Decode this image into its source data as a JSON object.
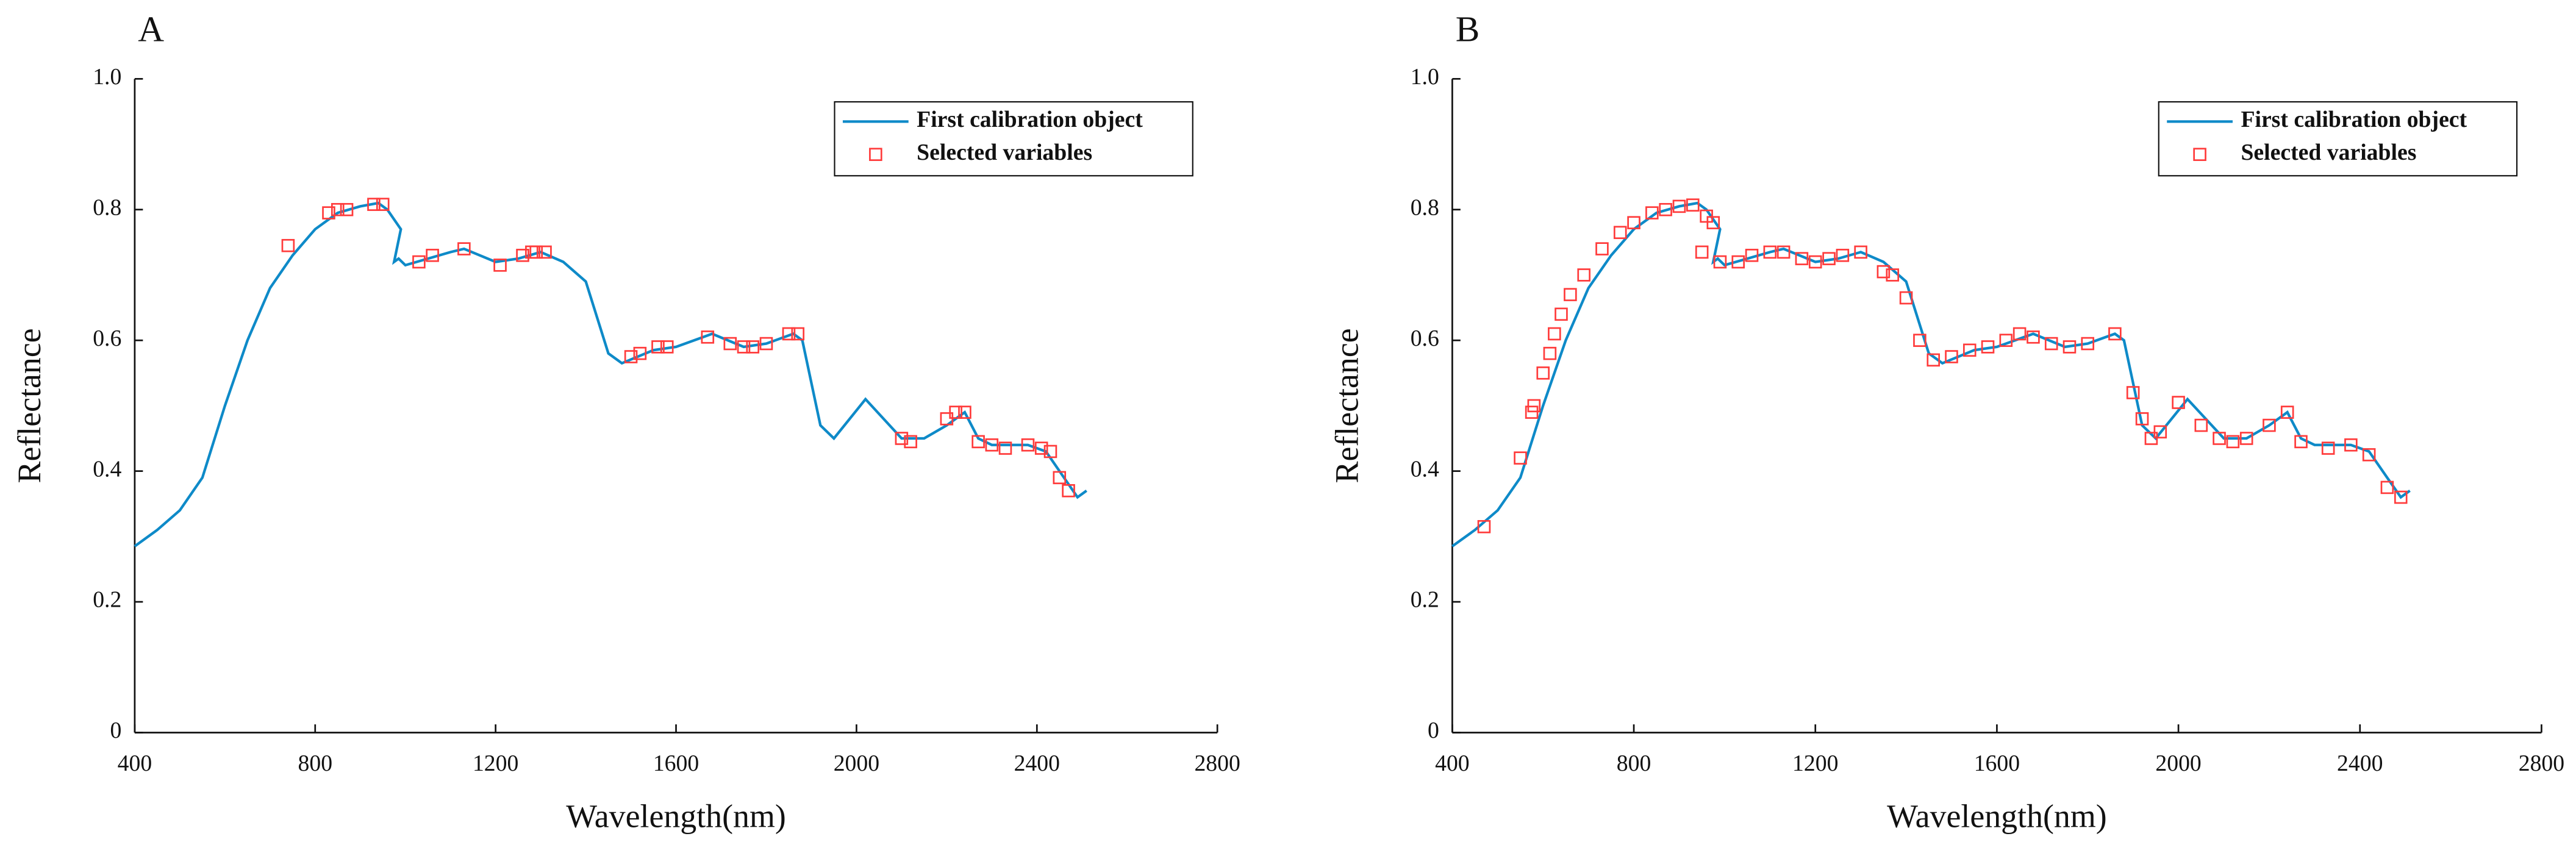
{
  "chart_data": [
    {
      "type": "line",
      "title": "A",
      "xlabel": "Wavelength(nm)",
      "ylabel": "Reflectance",
      "xlim": [
        400,
        2800
      ],
      "xticks": [
        400,
        800,
        1200,
        1600,
        2000,
        2400,
        2800
      ],
      "ylim": [
        0,
        1
      ],
      "yticks": [
        0,
        0.2,
        0.4,
        0.6,
        0.8,
        {
          "value": 1,
          "label": "1.0"
        }
      ],
      "legend": "upper right",
      "series": [
        {
          "name": "First calibration object",
          "type": "line",
          "color": "#0e8ac8",
          "x": [
            400,
            450,
            500,
            550,
            600,
            650,
            700,
            750,
            800,
            850,
            900,
            940,
            960,
            990,
            975,
            985,
            1000,
            1050,
            1100,
            1130,
            1200,
            1250,
            1300,
            1350,
            1400,
            1450,
            1480,
            1550,
            1600,
            1680,
            1750,
            1800,
            1860,
            1880,
            1920,
            1950,
            2020,
            2060,
            2100,
            2150,
            2200,
            2240,
            2270,
            2300,
            2380,
            2420,
            2460,
            2490,
            2510
          ],
          "values": [
            0.285,
            0.31,
            0.34,
            0.39,
            0.5,
            0.6,
            0.68,
            0.73,
            0.77,
            0.795,
            0.805,
            0.81,
            0.8,
            0.77,
            0.72,
            0.725,
            0.715,
            0.725,
            0.735,
            0.74,
            0.72,
            0.725,
            0.735,
            0.72,
            0.69,
            0.58,
            0.565,
            0.585,
            0.59,
            0.61,
            0.59,
            0.595,
            0.61,
            0.6,
            0.47,
            0.45,
            0.51,
            0.48,
            0.45,
            0.45,
            0.47,
            0.49,
            0.45,
            0.44,
            0.44,
            0.43,
            0.39,
            0.36,
            0.37
          ]
        },
        {
          "name": "Selected variables",
          "type": "scatter",
          "color": "#ff3b3b",
          "x": [
            740,
            830,
            850,
            870,
            930,
            950,
            1030,
            1060,
            1130,
            1210,
            1260,
            1280,
            1290,
            1310,
            1500,
            1520,
            1560,
            1580,
            1670,
            1720,
            1750,
            1770,
            1800,
            1850,
            1870,
            2100,
            2120,
            2200,
            2220,
            2240,
            2270,
            2300,
            2330,
            2380,
            2410,
            2430,
            2450,
            2470
          ],
          "values": [
            0.745,
            0.795,
            0.8,
            0.8,
            0.808,
            0.808,
            0.72,
            0.73,
            0.74,
            0.715,
            0.73,
            0.735,
            0.735,
            0.735,
            0.575,
            0.58,
            0.59,
            0.59,
            0.605,
            0.595,
            0.59,
            0.59,
            0.595,
            0.61,
            0.61,
            0.45,
            0.445,
            0.48,
            0.49,
            0.49,
            0.445,
            0.44,
            0.435,
            0.44,
            0.435,
            0.43,
            0.39,
            0.37
          ]
        }
      ]
    },
    {
      "type": "line",
      "title": "B",
      "xlabel": "Wavelength(nm)",
      "ylabel": "Reflectance",
      "xlim": [
        400,
        2800
      ],
      "xticks": [
        400,
        800,
        1200,
        1600,
        2000,
        2400,
        2800
      ],
      "ylim": [
        0,
        1
      ],
      "yticks": [
        0,
        0.2,
        0.4,
        0.6,
        0.8,
        {
          "value": 1,
          "label": "1.0"
        }
      ],
      "legend": "upper right",
      "series": [
        {
          "name": "First calibration object",
          "type": "line",
          "color": "#0e8ac8",
          "x": [
            400,
            450,
            500,
            550,
            600,
            650,
            700,
            750,
            800,
            850,
            900,
            940,
            960,
            990,
            975,
            985,
            1000,
            1050,
            1100,
            1130,
            1200,
            1250,
            1300,
            1350,
            1400,
            1450,
            1480,
            1550,
            1600,
            1680,
            1750,
            1800,
            1860,
            1880,
            1920,
            1950,
            2020,
            2060,
            2100,
            2150,
            2200,
            2240,
            2270,
            2300,
            2380,
            2420,
            2460,
            2490,
            2510
          ],
          "values": [
            0.285,
            0.31,
            0.34,
            0.39,
            0.5,
            0.6,
            0.68,
            0.73,
            0.77,
            0.795,
            0.805,
            0.81,
            0.8,
            0.77,
            0.72,
            0.725,
            0.715,
            0.725,
            0.735,
            0.74,
            0.72,
            0.725,
            0.735,
            0.72,
            0.69,
            0.58,
            0.565,
            0.585,
            0.59,
            0.61,
            0.59,
            0.595,
            0.61,
            0.6,
            0.47,
            0.45,
            0.51,
            0.48,
            0.45,
            0.45,
            0.47,
            0.49,
            0.45,
            0.44,
            0.44,
            0.43,
            0.39,
            0.36,
            0.37
          ]
        },
        {
          "name": "Selected variables",
          "type": "scatter",
          "color": "#ff3b3b",
          "x": [
            470,
            550,
            575,
            580,
            600,
            615,
            625,
            640,
            660,
            690,
            730,
            770,
            800,
            840,
            870,
            900,
            930,
            960,
            975,
            950,
            990,
            1030,
            1060,
            1100,
            1130,
            1170,
            1200,
            1230,
            1260,
            1300,
            1350,
            1370,
            1400,
            1430,
            1460,
            1500,
            1540,
            1580,
            1620,
            1650,
            1680,
            1720,
            1760,
            1800,
            1860,
            1900,
            1920,
            1940,
            1960,
            2000,
            2050,
            2090,
            2120,
            2150,
            2200,
            2240,
            2270,
            2330,
            2380,
            2420,
            2460,
            2490
          ],
          "values": [
            0.315,
            0.42,
            0.49,
            0.5,
            0.55,
            0.58,
            0.61,
            0.64,
            0.67,
            0.7,
            0.74,
            0.765,
            0.78,
            0.795,
            0.8,
            0.805,
            0.807,
            0.79,
            0.78,
            0.735,
            0.72,
            0.72,
            0.73,
            0.735,
            0.735,
            0.725,
            0.72,
            0.725,
            0.73,
            0.735,
            0.705,
            0.7,
            0.665,
            0.6,
            0.57,
            0.575,
            0.585,
            0.59,
            0.6,
            0.61,
            0.605,
            0.595,
            0.59,
            0.595,
            0.61,
            0.52,
            0.48,
            0.45,
            0.46,
            0.505,
            0.47,
            0.45,
            0.445,
            0.45,
            0.47,
            0.49,
            0.445,
            0.435,
            0.44,
            0.425,
            0.375,
            0.36
          ]
        }
      ]
    }
  ]
}
